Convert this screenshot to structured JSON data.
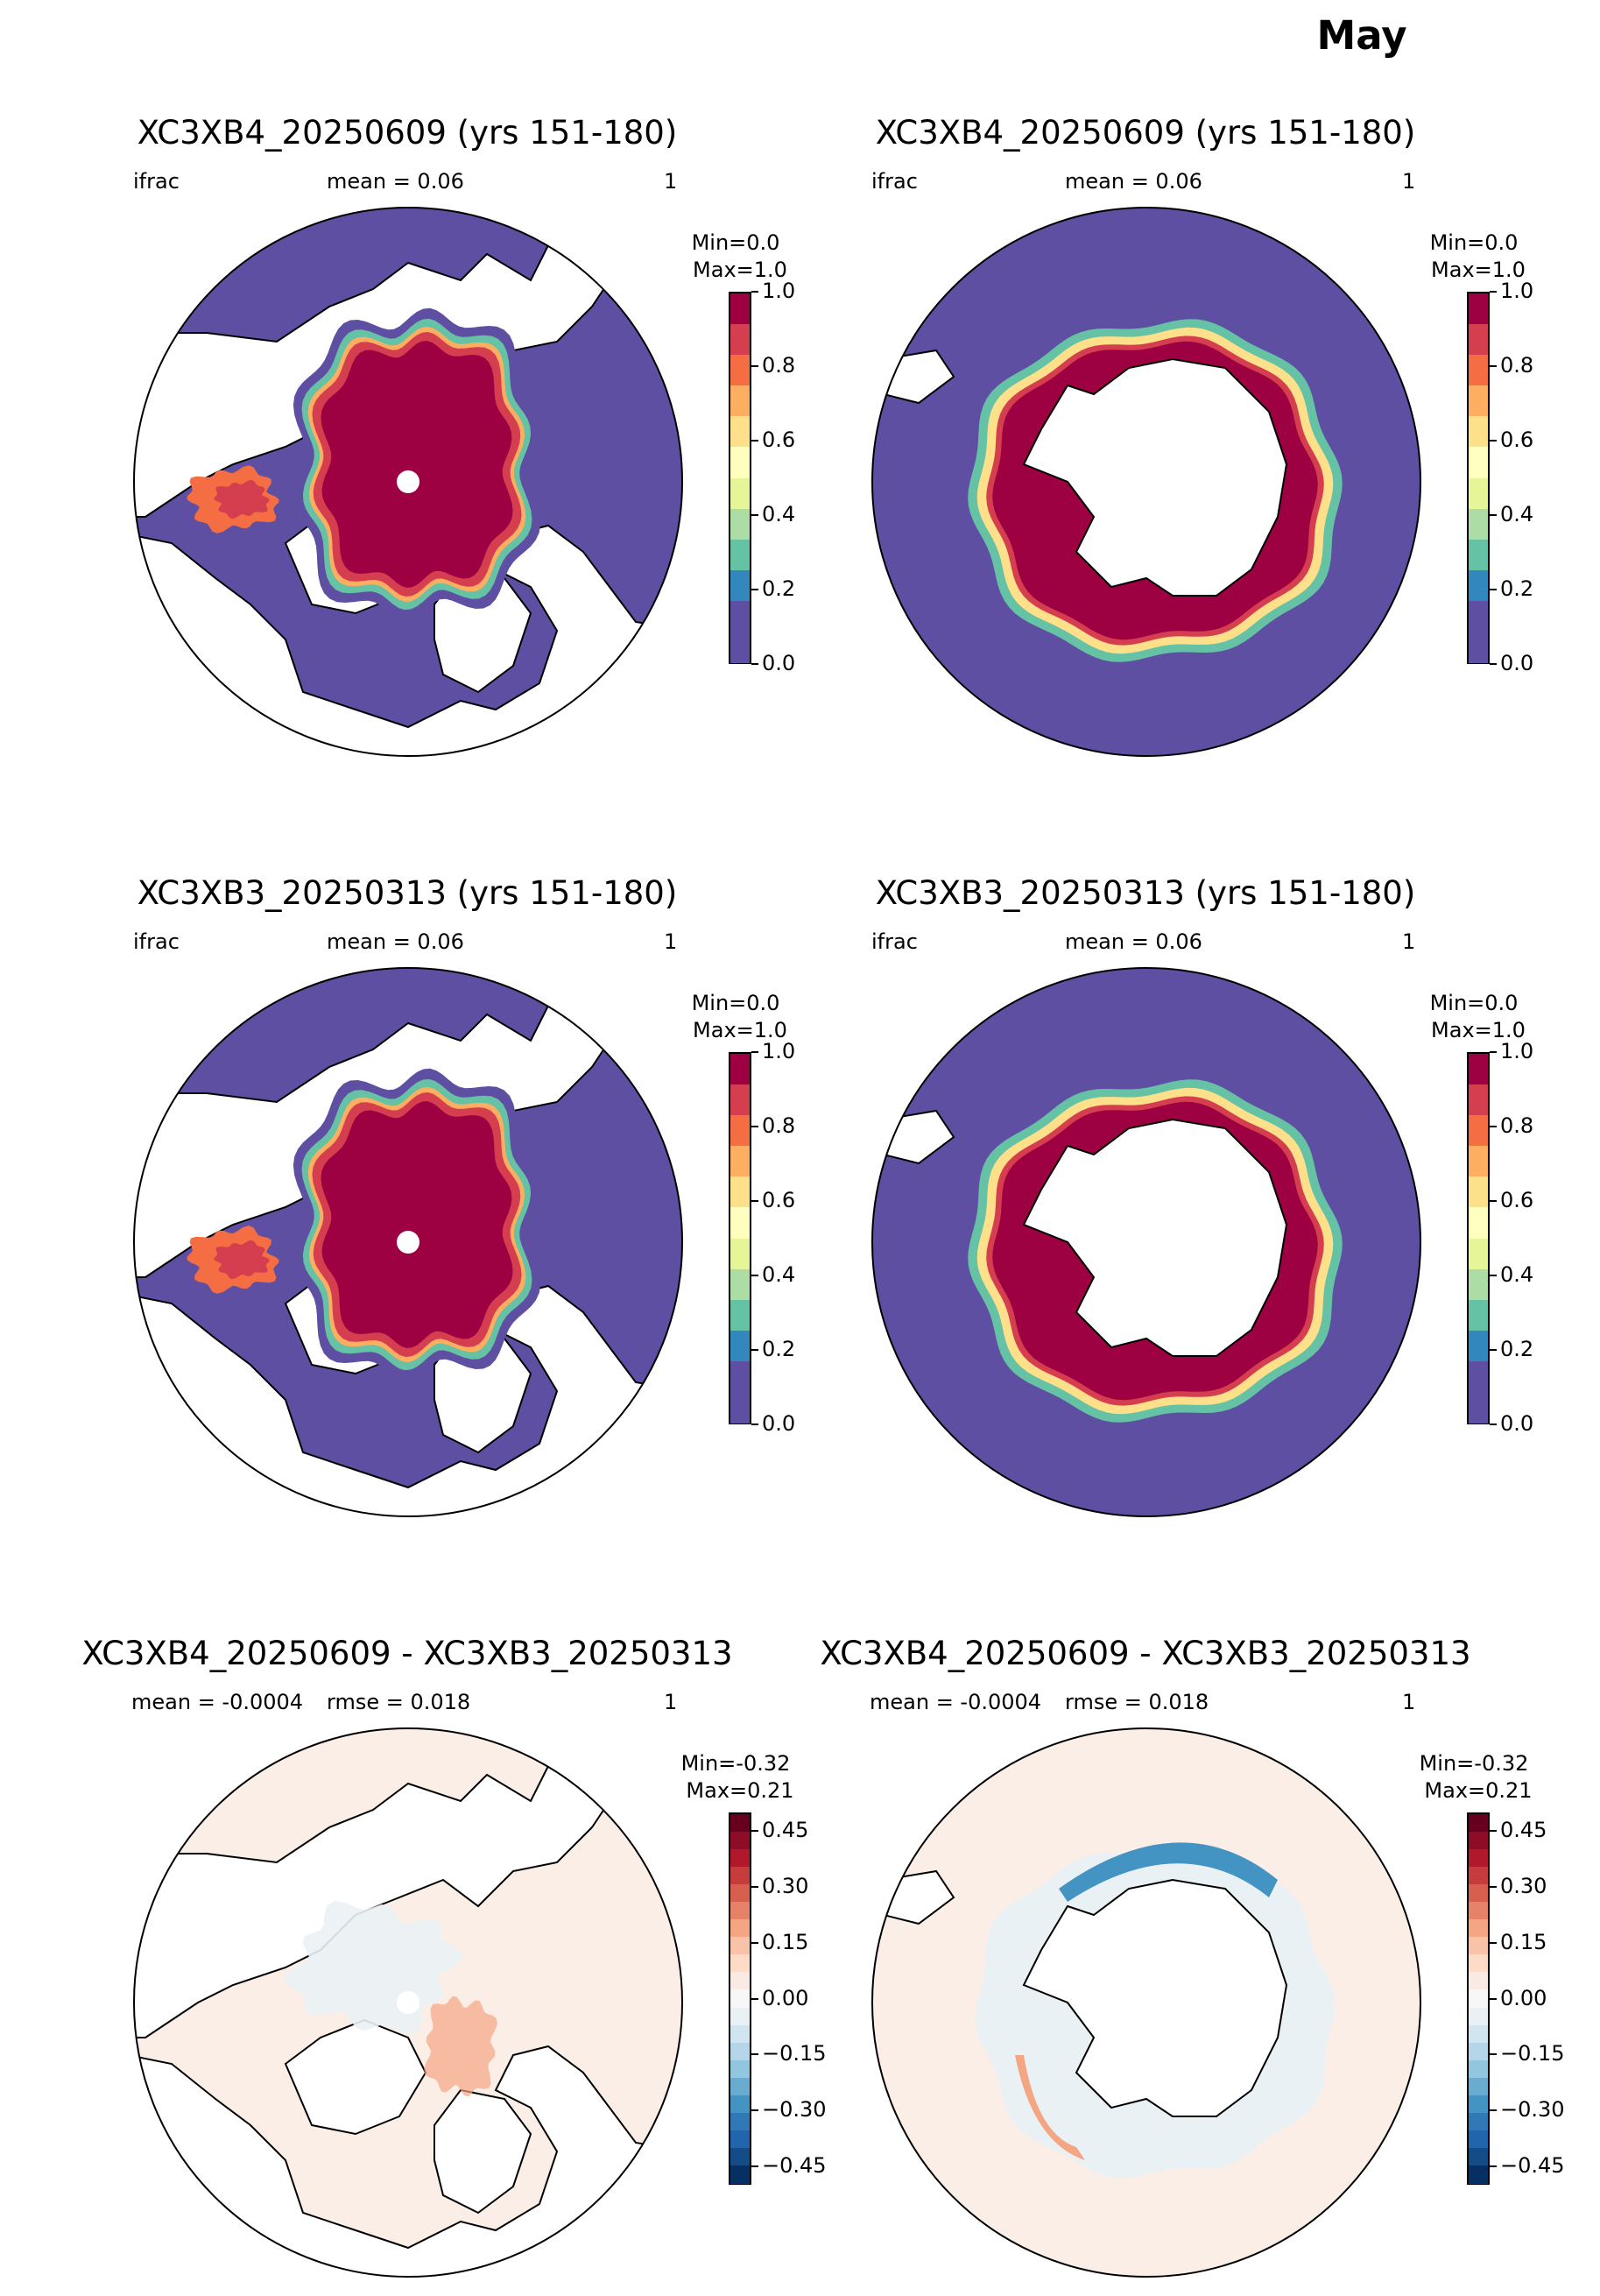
{
  "suptitle": "May",
  "panels": [
    {
      "title": "XC3XB4_20250609 (yrs 151-180)",
      "left": "ifrac",
      "center": "mean = 0.06",
      "right": "1",
      "min": "Min=0.0",
      "max": "Max=1.0",
      "hemisphere": "north",
      "kind": "ifrac"
    },
    {
      "title": "XC3XB4_20250609 (yrs 151-180)",
      "left": "ifrac",
      "center": "mean = 0.06",
      "right": "1",
      "min": "Min=0.0",
      "max": "Max=1.0",
      "hemisphere": "south",
      "kind": "ifrac"
    },
    {
      "title": "XC3XB3_20250313 (yrs 151-180)",
      "left": "ifrac",
      "center": "mean = 0.06",
      "right": "1",
      "min": "Min=0.0",
      "max": "Max=1.0",
      "hemisphere": "north",
      "kind": "ifrac"
    },
    {
      "title": "XC3XB3_20250313 (yrs 151-180)",
      "left": "ifrac",
      "center": "mean = 0.06",
      "right": "1",
      "min": "Min=0.0",
      "max": "Max=1.0",
      "hemisphere": "south",
      "kind": "ifrac"
    },
    {
      "title": "XC3XB4_20250609 - XC3XB3_20250313",
      "left": "mean = -0.0004",
      "center": "rmse = 0.018",
      "right": "1",
      "min": "Min=-0.32",
      "max": "Max=0.21",
      "hemisphere": "north",
      "kind": "diff"
    },
    {
      "title": "XC3XB4_20250609 - XC3XB3_20250313",
      "left": "mean = -0.0004",
      "center": "rmse = 0.018",
      "right": "1",
      "min": "Min=-0.32",
      "max": "Max=0.21",
      "hemisphere": "south",
      "kind": "diff"
    }
  ],
  "colorbars": {
    "ifrac": {
      "ticks": [
        "1.0",
        "0.8",
        "0.6",
        "0.4",
        "0.2",
        "0.0"
      ],
      "colors": [
        "#9e0142",
        "#d53e4f",
        "#f46d43",
        "#fdae61",
        "#fee08b",
        "#ffffbf",
        "#e6f598",
        "#abdda4",
        "#66c2a5",
        "#3288bd",
        "#5e4fa2",
        "#5e4fa2"
      ]
    },
    "diff": {
      "ticks": [
        "0.45",
        "0.30",
        "0.15",
        "0.00",
        "−0.15",
        "−0.30",
        "−0.45"
      ],
      "colors": [
        "#67001f",
        "#8e0c25",
        "#b2182b",
        "#c43c3c",
        "#d6604d",
        "#e58267",
        "#f4a582",
        "#f8c3a6",
        "#fddbc7",
        "#f9ebe3",
        "#f7f7f7",
        "#eaf1f5",
        "#d1e5f0",
        "#b4d6e8",
        "#92c5de",
        "#6aacd0",
        "#4393c3",
        "#3079b6",
        "#2166ac",
        "#144c87",
        "#053061"
      ]
    }
  },
  "map_colors": {
    "ocean_low": "#5e4fa2",
    "diff_ocean": "#fbeee6",
    "land": "#ffffff",
    "ice_high": "#9e0142"
  }
}
